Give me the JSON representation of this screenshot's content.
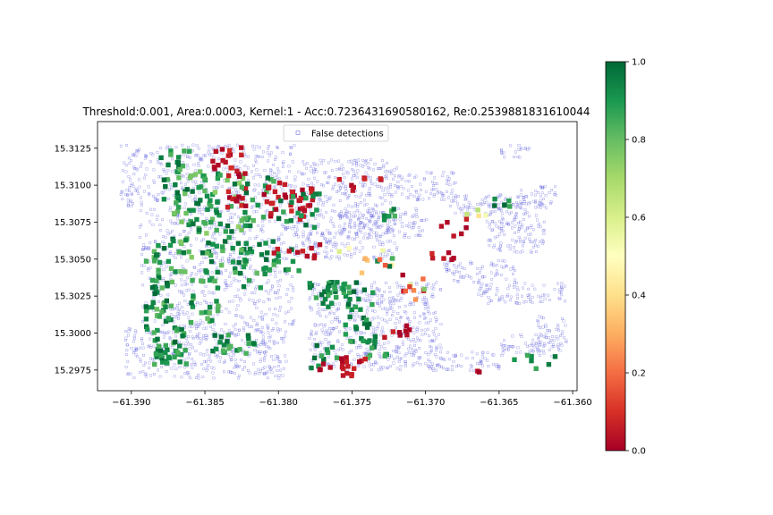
{
  "chart_data": {
    "type": "scatter",
    "title": "Threshold:0.001, Area:0.0003, Kernel:1 - Acc:0.7236431690580162, Re:0.2539881831610044",
    "xlabel": "",
    "ylabel": "",
    "xlim": [
      -61.3923,
      -61.3597
    ],
    "ylim": [
      15.2961,
      15.3143
    ],
    "x_ticks": [
      -61.39,
      -61.385,
      -61.38,
      -61.375,
      -61.37,
      -61.365,
      -61.36
    ],
    "x_tick_labels": [
      "−61.390",
      "−61.385",
      "−61.380",
      "−61.375",
      "−61.370",
      "−61.365",
      "−61.360"
    ],
    "y_ticks": [
      15.2975,
      15.3,
      15.3025,
      15.305,
      15.3075,
      15.31,
      15.3125
    ],
    "y_tick_labels": [
      "15.2975",
      "15.3000",
      "15.3025",
      "15.3050",
      "15.3075",
      "15.3100",
      "15.3125"
    ],
    "legend": {
      "label": "False detections",
      "placement": "upper-center"
    },
    "grid": false,
    "false_detection_color": "#5b5bdc",
    "colormap": {
      "name": "RdYlGn",
      "min": 0.0,
      "max": 1.0,
      "ticks": [
        0.0,
        0.2,
        0.4,
        0.6,
        0.8,
        1.0
      ],
      "tick_labels": [
        "0.0",
        "0.2",
        "0.4",
        "0.6",
        "0.8",
        "1.0"
      ],
      "stops": [
        "#a50026",
        "#d73027",
        "#f46d43",
        "#fdae61",
        "#fee08b",
        "#ffffbf",
        "#d9ef8b",
        "#a6d96a",
        "#66bd63",
        "#1a9850",
        "#006837"
      ]
    },
    "false_detection_regions": [
      {
        "x": [
          -61.3908,
          -61.3895
        ],
        "y": [
          15.3085,
          15.3128
        ]
      },
      {
        "x": [
          -61.3895,
          -61.379
        ],
        "y": [
          15.3005,
          15.3128
        ]
      },
      {
        "x": [
          -61.379,
          -61.372
        ],
        "y": [
          15.305,
          15.3118
        ]
      },
      {
        "x": [
          -61.378,
          -61.369
        ],
        "y": [
          15.2975,
          15.3035
        ]
      },
      {
        "x": [
          -61.372,
          -61.368
        ],
        "y": [
          15.309,
          15.311
        ]
      },
      {
        "x": [
          -61.376,
          -61.37
        ],
        "y": [
          15.3065,
          15.3085
        ]
      },
      {
        "x": [
          -61.3685,
          -61.365
        ],
        "y": [
          15.308,
          15.3095
        ]
      },
      {
        "x": [
          -61.366,
          -61.362
        ],
        "y": [
          15.3055,
          15.3095
        ]
      },
      {
        "x": [
          -61.365,
          -61.363
        ],
        "y": [
          15.3118,
          15.3128
        ]
      },
      {
        "x": [
          -61.364,
          -61.361
        ],
        "y": [
          15.3085,
          15.31
        ]
      },
      {
        "x": [
          -61.369,
          -61.364
        ],
        "y": [
          15.3035,
          15.305
        ]
      },
      {
        "x": [
          -61.3665,
          -61.3605
        ],
        "y": [
          15.302,
          15.3035
        ]
      },
      {
        "x": [
          -61.365,
          -61.361
        ],
        "y": [
          15.2985,
          15.3
        ]
      },
      {
        "x": [
          -61.37,
          -61.365
        ],
        "y": [
          15.2975,
          15.2988
        ]
      },
      {
        "x": [
          -61.3625,
          -61.3605
        ],
        "y": [
          15.2988,
          15.3012
        ]
      },
      {
        "x": [
          -61.3905,
          -61.3795
        ],
        "y": [
          15.297,
          15.3005
        ]
      }
    ],
    "detection_clusters": [
      {
        "x": [
          -61.389,
          -61.387
        ],
        "y": [
          15.3,
          15.3065
        ],
        "n": 55,
        "value_range": [
          0.78,
          1.0
        ]
      },
      {
        "x": [
          -61.3872,
          -61.385
        ],
        "y": [
          15.304,
          15.311
        ],
        "n": 40,
        "value_range": [
          0.75,
          1.0
        ]
      },
      {
        "x": [
          -61.388,
          -61.386
        ],
        "y": [
          15.309,
          15.3125
        ],
        "n": 20,
        "value_range": [
          0.8,
          1.0
        ]
      },
      {
        "x": [
          -61.3885,
          -61.3862
        ],
        "y": [
          15.2978,
          15.3005
        ],
        "n": 38,
        "value_range": [
          0.82,
          1.0
        ]
      },
      {
        "x": [
          -61.386,
          -61.384
        ],
        "y": [
          15.3005,
          15.304
        ],
        "n": 22,
        "value_range": [
          0.8,
          1.0
        ]
      },
      {
        "x": [
          -61.3855,
          -61.382
        ],
        "y": [
          15.3065,
          15.311
        ],
        "n": 50,
        "value_range": [
          0.7,
          1.0
        ]
      },
      {
        "x": [
          -61.385,
          -61.3818
        ],
        "y": [
          15.304,
          15.3068
        ],
        "n": 30,
        "value_range": [
          0.8,
          1.0
        ]
      },
      {
        "x": [
          -61.3848,
          -61.3815
        ],
        "y": [
          15.2985,
          15.3
        ],
        "n": 22,
        "value_range": [
          0.82,
          1.0
        ]
      },
      {
        "x": [
          -61.3845,
          -61.3825
        ],
        "y": [
          15.3105,
          15.3128
        ],
        "n": 18,
        "value_range": [
          0.0,
          0.1
        ]
      },
      {
        "x": [
          -61.3835,
          -61.382
        ],
        "y": [
          15.3085,
          15.311
        ],
        "n": 14,
        "value_range": [
          0.0,
          0.1
        ]
      },
      {
        "x": [
          -61.3825,
          -61.38
        ],
        "y": [
          15.303,
          15.3105
        ],
        "n": 35,
        "value_range": [
          0.8,
          1.0
        ]
      },
      {
        "x": [
          -61.381,
          -61.3775
        ],
        "y": [
          15.3075,
          15.3102
        ],
        "n": 38,
        "value_range": [
          0.0,
          0.08
        ]
      },
      {
        "x": [
          -61.38,
          -61.3772
        ],
        "y": [
          15.307,
          15.3095
        ],
        "n": 18,
        "value_range": [
          0.85,
          1.0
        ]
      },
      {
        "x": [
          -61.3815,
          -61.378
        ],
        "y": [
          15.304,
          15.306
        ],
        "n": 12,
        "value_range": [
          0.8,
          1.0
        ]
      },
      {
        "x": [
          -61.378,
          -61.3745
        ],
        "y": [
          15.3025,
          15.3035
        ],
        "n": 22,
        "value_range": [
          0.85,
          1.0
        ]
      },
      {
        "x": [
          -61.3775,
          -61.3735
        ],
        "y": [
          15.301,
          15.303
        ],
        "n": 20,
        "value_range": [
          0.85,
          1.0
        ]
      },
      {
        "x": [
          -61.3755,
          -61.3735
        ],
        "y": [
          15.299,
          15.302
        ],
        "n": 18,
        "value_range": [
          0.85,
          1.0
        ]
      },
      {
        "x": [
          -61.373,
          -61.3708
        ],
        "y": [
          15.2995,
          15.3005
        ],
        "n": 8,
        "value_range": [
          0.0,
          0.08
        ]
      },
      {
        "x": [
          -61.374,
          -61.3715
        ],
        "y": [
          15.2983,
          15.2998
        ],
        "n": 10,
        "value_range": [
          0.82,
          1.0
        ]
      },
      {
        "x": [
          -61.378,
          -61.376
        ],
        "y": [
          15.2975,
          15.2992
        ],
        "n": 10,
        "value_range": [
          0.85,
          1.0
        ]
      },
      {
        "x": [
          -61.3775,
          -61.375
        ],
        "y": [
          15.297,
          15.298
        ],
        "n": 10,
        "value_range": [
          0.0,
          0.08
        ]
      },
      {
        "x": [
          -61.376,
          -61.374
        ],
        "y": [
          15.2975,
          15.299
        ],
        "n": 10,
        "value_range": [
          0.0,
          0.08
        ]
      },
      {
        "x": [
          -61.3805,
          -61.377
        ],
        "y": [
          15.305,
          15.306
        ],
        "n": 10,
        "value_range": [
          0.0,
          0.08
        ]
      },
      {
        "x": [
          -61.376,
          -61.372
        ],
        "y": [
          15.304,
          15.306
        ],
        "n": 12,
        "value_range": [
          0.0,
          1.0
        ]
      },
      {
        "x": [
          -61.372,
          -61.37
        ],
        "y": [
          15.302,
          15.304
        ],
        "n": 10,
        "value_range": [
          0.0,
          1.0
        ]
      },
      {
        "x": [
          -61.37,
          -61.368
        ],
        "y": [
          15.3045,
          15.3055
        ],
        "n": 6,
        "value_range": [
          0.0,
          0.08
        ]
      },
      {
        "x": [
          -61.374,
          -61.372
        ],
        "y": [
          15.307,
          15.3085
        ],
        "n": 6,
        "value_range": [
          0.8,
          1.0
        ]
      },
      {
        "x": [
          -61.369,
          -61.367
        ],
        "y": [
          15.3065,
          15.3075
        ],
        "n": 5,
        "value_range": [
          0.0,
          0.08
        ]
      },
      {
        "x": [
          -61.3675,
          -61.3655
        ],
        "y": [
          15.3075,
          15.3085
        ],
        "n": 5,
        "value_range": [
          0.0,
          1.0
        ]
      },
      {
        "x": [
          -61.3655,
          -61.364
        ],
        "y": [
          15.3085,
          15.3093
        ],
        "n": 6,
        "value_range": [
          0.85,
          1.0
        ]
      },
      {
        "x": [
          -61.3765,
          -61.373
        ],
        "y": [
          15.3095,
          15.3105
        ],
        "n": 8,
        "value_range": [
          0.0,
          0.08
        ]
      },
      {
        "x": [
          -61.364,
          -61.361
        ],
        "y": [
          15.2975,
          15.2985
        ],
        "n": 7,
        "value_range": [
          0.85,
          1.0
        ]
      },
      {
        "x": [
          -61.367,
          -61.366
        ],
        "y": [
          15.2972,
          15.2976
        ],
        "n": 2,
        "value_range": [
          0.0,
          0.05
        ]
      }
    ]
  }
}
